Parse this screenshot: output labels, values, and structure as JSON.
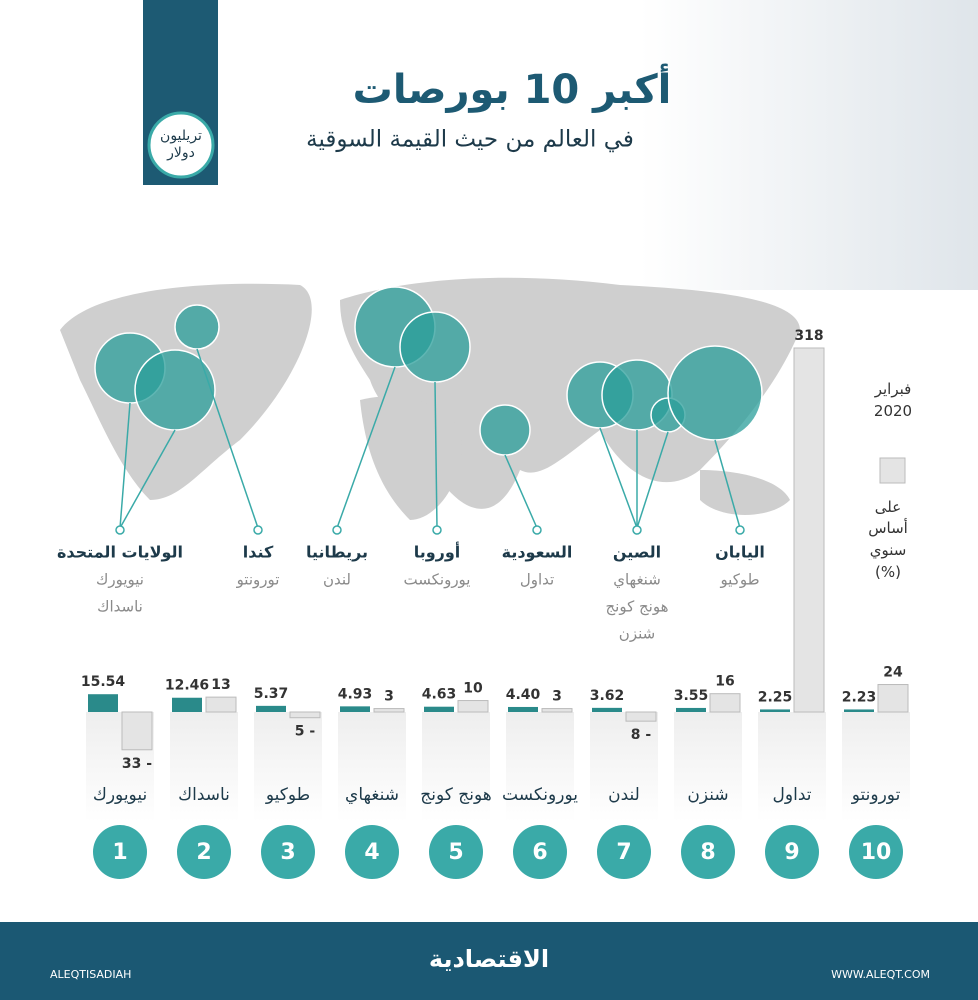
{
  "header": {
    "title": "أكبر 10 بورصات",
    "subtitle": "في العالم من حيث القيمة السوقية"
  },
  "map_labels": [
    {
      "country": "الولايات المتحدة",
      "exchanges": [
        "نيويورك",
        "ناسداك"
      ]
    },
    {
      "country": "كندا",
      "exchanges": [
        "تورونتو"
      ]
    },
    {
      "country": "بريطانيا",
      "exchanges": [
        "لندن"
      ]
    },
    {
      "country": "أوروبا",
      "exchanges": [
        "يورونكست"
      ]
    },
    {
      "country": "السعودية",
      "exchanges": [
        "تداول"
      ]
    },
    {
      "country": "الصين",
      "exchanges": [
        "شنغهاي",
        "هونج كونج",
        "شنزن"
      ]
    },
    {
      "country": "اليابان",
      "exchanges": [
        "طوكيو"
      ]
    }
  ],
  "chart_data": {
    "type": "bar",
    "date_label": "فبراير 2020",
    "categories": [
      "نيويورك",
      "ناسداك",
      "طوكيو",
      "شنغهاي",
      "هونج كونج",
      "يورونكست",
      "لندن",
      "شنزن",
      "تداول",
      "تورونتو"
    ],
    "ranks": [
      1,
      2,
      3,
      4,
      5,
      6,
      7,
      8,
      9,
      10
    ],
    "series": [
      {
        "name": "تريليون دولار",
        "color": "#2a8a8a",
        "values": [
          15.54,
          12.46,
          5.37,
          4.93,
          4.63,
          4.4,
          3.62,
          3.55,
          2.25,
          2.23
        ],
        "value_labels": [
          "15.54",
          "12.46",
          "5.37",
          "4.93",
          "4.63",
          "4.40",
          "3.62",
          "3.55",
          "2.25",
          "2.23"
        ]
      },
      {
        "name": "على أساس سنوي (%)",
        "color": "#e4e4e4",
        "values": [
          -33,
          13,
          -5,
          3,
          10,
          3,
          -8,
          16,
          318,
          24
        ],
        "value_labels": [
          "33 -",
          "13",
          "5 -",
          "3",
          "10",
          "3",
          "8 -",
          "16",
          "318",
          "24"
        ]
      }
    ]
  },
  "footer": {
    "handle": "ALEQTISADIAH",
    "brand": "الاقتصادية",
    "website": "WWW.ALEQT.COM"
  }
}
